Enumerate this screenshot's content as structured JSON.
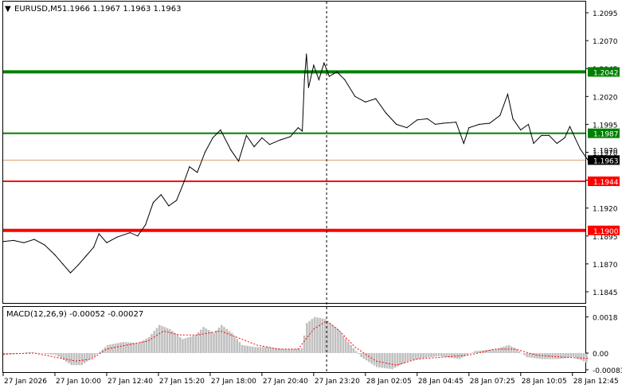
{
  "header": {
    "menu_glyph": "▼",
    "symbol": "EURUSD,M5",
    "ohlc": "1.1966 1.1967 1.1963 1.1963"
  },
  "indicator": {
    "label": "MACD(12,26,9) -0.00052 -0.00027"
  },
  "colors": {
    "background": "#ffffff",
    "price_line": "#000000",
    "support_green": "#008000",
    "resistance_red": "#ff0000",
    "current_price_line": "#d8a070",
    "macd_hist": "#c0c0c0",
    "macd_signal": "#ff0000"
  },
  "chart_data": [
    {
      "type": "line",
      "symbol": "EURUSD",
      "timeframe": "M5",
      "ylim": [
        1.1835,
        1.2105
      ],
      "y_ticks": [
        "1.2095",
        "1.2070",
        "1.2045",
        "1.2020",
        "1.1995",
        "1.1970",
        "1.1945",
        "1.1920",
        "1.1895",
        "1.1870",
        "1.1845"
      ],
      "x_ticks": [
        "27 Jan 2026",
        "27 Jan 10:00",
        "27 Jan 12:40",
        "27 Jan 15:20",
        "27 Jan 18:00",
        "27 Jan 20:40",
        "27 Jan 23:20",
        "28 Jan 02:05",
        "28 Jan 04:45",
        "28 Jan 07:25",
        "28 Jan 10:05",
        "28 Jan 12:45"
      ],
      "price_series": {
        "name": "EURUSD",
        "points": [
          [
            0,
            1.189
          ],
          [
            0.2,
            1.1891
          ],
          [
            0.4,
            1.1889
          ],
          [
            0.6,
            1.1892
          ],
          [
            0.8,
            1.1887
          ],
          [
            1.0,
            1.1878
          ],
          [
            1.15,
            1.187
          ],
          [
            1.3,
            1.1862
          ],
          [
            1.45,
            1.1869
          ],
          [
            1.6,
            1.1877
          ],
          [
            1.75,
            1.1885
          ],
          [
            1.85,
            1.1897
          ],
          [
            2.0,
            1.1889
          ],
          [
            2.2,
            1.1894
          ],
          [
            2.45,
            1.1898
          ],
          [
            2.6,
            1.1895
          ],
          [
            2.75,
            1.1905
          ],
          [
            2.9,
            1.1925
          ],
          [
            3.05,
            1.1932
          ],
          [
            3.2,
            1.1922
          ],
          [
            3.35,
            1.1927
          ],
          [
            3.5,
            1.1944
          ],
          [
            3.6,
            1.1957
          ],
          [
            3.75,
            1.1952
          ],
          [
            3.9,
            1.197
          ],
          [
            4.05,
            1.1983
          ],
          [
            4.2,
            1.199
          ],
          [
            4.4,
            1.1972
          ],
          [
            4.55,
            1.1962
          ],
          [
            4.7,
            1.1985
          ],
          [
            4.85,
            1.1975
          ],
          [
            5.0,
            1.1983
          ],
          [
            5.15,
            1.1977
          ],
          [
            5.35,
            1.1981
          ],
          [
            5.55,
            1.1984
          ],
          [
            5.7,
            1.1992
          ],
          [
            5.78,
            1.1989
          ],
          [
            5.82,
            1.2035
          ],
          [
            5.86,
            1.2058
          ],
          [
            5.9,
            1.2028
          ],
          [
            6.0,
            1.2048
          ],
          [
            6.1,
            1.2035
          ],
          [
            6.2,
            1.205
          ],
          [
            6.3,
            1.2038
          ],
          [
            6.45,
            1.2042
          ],
          [
            6.6,
            1.2035
          ],
          [
            6.8,
            1.202
          ],
          [
            7.0,
            1.2015
          ],
          [
            7.2,
            1.2018
          ],
          [
            7.4,
            1.2005
          ],
          [
            7.6,
            1.1995
          ],
          [
            7.8,
            1.1992
          ],
          [
            8.0,
            1.1999
          ],
          [
            8.2,
            1.2
          ],
          [
            8.35,
            1.1995
          ],
          [
            8.5,
            1.1996
          ],
          [
            8.75,
            1.1997
          ],
          [
            8.9,
            1.1978
          ],
          [
            9.0,
            1.1992
          ],
          [
            9.2,
            1.1995
          ],
          [
            9.4,
            1.1996
          ],
          [
            9.6,
            1.2003
          ],
          [
            9.75,
            1.2022
          ],
          [
            9.85,
            1.2
          ],
          [
            10.0,
            1.199
          ],
          [
            10.15,
            1.1995
          ],
          [
            10.25,
            1.1978
          ],
          [
            10.4,
            1.1985
          ],
          [
            10.55,
            1.1985
          ],
          [
            10.7,
            1.1978
          ],
          [
            10.85,
            1.1983
          ],
          [
            10.95,
            1.1993
          ],
          [
            11.05,
            1.1983
          ],
          [
            11.15,
            1.1973
          ],
          [
            11.3,
            1.1963
          ]
        ]
      },
      "levels": [
        {
          "value": 1.2042,
          "label": "1.2042",
          "color": "#008000",
          "style": "thick"
        },
        {
          "value": 1.1987,
          "label": "1.1987",
          "color": "#008000",
          "style": "medium"
        },
        {
          "value": 1.1963,
          "label": "1.1963",
          "color": "#000000",
          "style": "current"
        },
        {
          "value": 1.1944,
          "label": "1.1944",
          "color": "#ff0000",
          "style": "medium"
        },
        {
          "value": 1.19,
          "label": "1.1900",
          "color": "#ff0000",
          "style": "thick"
        }
      ],
      "overlay_tick_partial": "1.1970",
      "cursor_x": 6.25
    },
    {
      "type": "bar",
      "name": "MACD(12,26,9)",
      "values_main": -0.00052,
      "values_signal": -0.00027,
      "ylim": [
        -0.00095,
        0.0023
      ],
      "y_ticks": [
        "0.0018",
        "0.00",
        "-0.00083"
      ],
      "histogram": [
        [
          0,
          -0.0001
        ],
        [
          0.5,
          5e-05
        ],
        [
          1.0,
          -0.0001
        ],
        [
          1.3,
          -0.0006
        ],
        [
          1.5,
          -0.0006
        ],
        [
          1.75,
          -0.00015
        ],
        [
          2.0,
          0.0004
        ],
        [
          2.3,
          0.00055
        ],
        [
          2.6,
          0.0005
        ],
        [
          2.8,
          0.0008
        ],
        [
          3.0,
          0.0014
        ],
        [
          3.2,
          0.0012
        ],
        [
          3.45,
          0.0007
        ],
        [
          3.7,
          0.0009
        ],
        [
          3.85,
          0.0013
        ],
        [
          4.05,
          0.001
        ],
        [
          4.2,
          0.0014
        ],
        [
          4.4,
          0.001
        ],
        [
          4.6,
          0.0004
        ],
        [
          4.85,
          0.0003
        ],
        [
          5.1,
          0.0003
        ],
        [
          5.4,
          0.0002
        ],
        [
          5.6,
          0.0002
        ],
        [
          5.75,
          0.00025
        ],
        [
          5.85,
          0.0015
        ],
        [
          6.0,
          0.0018
        ],
        [
          6.2,
          0.0017
        ],
        [
          6.45,
          0.0012
        ],
        [
          6.7,
          0.0004
        ],
        [
          6.9,
          -0.0002
        ],
        [
          7.2,
          -0.0007
        ],
        [
          7.5,
          -0.0008
        ],
        [
          7.8,
          -0.0004
        ],
        [
          8.1,
          -0.00025
        ],
        [
          8.4,
          -0.00015
        ],
        [
          8.8,
          -0.0003
        ],
        [
          9.1,
          0.0001
        ],
        [
          9.5,
          0.0002
        ],
        [
          9.75,
          0.0004
        ],
        [
          9.9,
          0.0002
        ],
        [
          10.1,
          -0.0002
        ],
        [
          10.4,
          -0.0003
        ],
        [
          10.7,
          -0.0003
        ],
        [
          11.0,
          -0.0002
        ],
        [
          11.3,
          -0.00052
        ]
      ],
      "signal": [
        [
          0,
          -5e-05
        ],
        [
          0.6,
          0.0
        ],
        [
          1.0,
          -0.0002
        ],
        [
          1.4,
          -0.0004
        ],
        [
          1.7,
          -0.0003
        ],
        [
          2.0,
          0.0002
        ],
        [
          2.4,
          0.0004
        ],
        [
          2.8,
          0.0006
        ],
        [
          3.1,
          0.0011
        ],
        [
          3.4,
          0.0009
        ],
        [
          3.75,
          0.0009
        ],
        [
          4.2,
          0.0011
        ],
        [
          4.5,
          0.0008
        ],
        [
          4.9,
          0.0004
        ],
        [
          5.3,
          0.0002
        ],
        [
          5.7,
          0.0002
        ],
        [
          6.0,
          0.0012
        ],
        [
          6.25,
          0.0016
        ],
        [
          6.5,
          0.0011
        ],
        [
          6.8,
          0.0003
        ],
        [
          7.2,
          -0.0004
        ],
        [
          7.6,
          -0.0006
        ],
        [
          8.0,
          -0.0003
        ],
        [
          8.5,
          -0.0002
        ],
        [
          9.0,
          -0.0001
        ],
        [
          9.5,
          0.0002
        ],
        [
          9.9,
          0.0002
        ],
        [
          10.3,
          -0.0001
        ],
        [
          10.8,
          -0.0002
        ],
        [
          11.3,
          -0.00027
        ]
      ]
    }
  ]
}
